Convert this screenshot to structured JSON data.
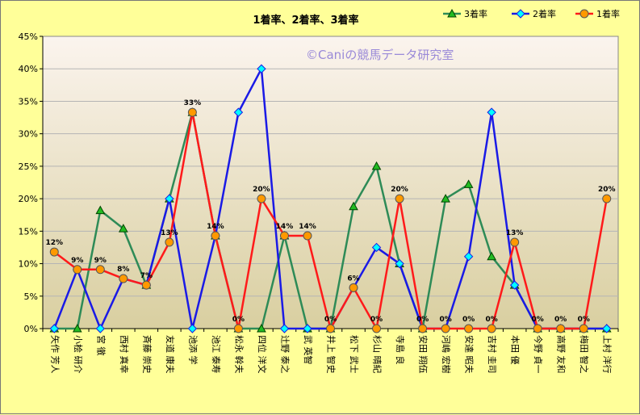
{
  "chart_data": {
    "type": "line",
    "title": "1着率、2着率、3着率",
    "watermark": "©Caniの競馬データ研究室",
    "ylim": [
      0,
      45
    ],
    "yticks": [
      "0%",
      "5%",
      "10%",
      "15%",
      "20%",
      "25%",
      "30%",
      "35%",
      "40%",
      "45%"
    ],
    "legend_position": "top-right",
    "categories": [
      "矢作 芳人",
      "小桧 研介",
      "宮 徹",
      "西村 真幸",
      "斉藤 崇史",
      "友道 康夫",
      "池添 学",
      "池江 泰寿",
      "松永 幹夫",
      "四位 洋文",
      "辻野 泰之",
      "武 英智",
      "井上 智史",
      "松下 武士",
      "杉山 晴紀",
      "寺島 良",
      "安田 翔伍",
      "河嶋 宏樹",
      "安達 昭夫",
      "吉村 圭司",
      "本田 優",
      "今野 貞一",
      "高野 友和",
      "梅田 智之",
      "上村 洋行"
    ],
    "series": [
      {
        "name": "3着率",
        "color": "#2e8b57",
        "marker": "triangle",
        "marker_fill": "#22bb22",
        "values": [
          0,
          0,
          18.2,
          15.4,
          6.7,
          20,
          33.3,
          14.3,
          0,
          0,
          14.3,
          0,
          0,
          18.8,
          25,
          10,
          0,
          20,
          22.2,
          11.1,
          6.7,
          0,
          0,
          0,
          0
        ]
      },
      {
        "name": "2着率",
        "color": "#1a1ae6",
        "marker": "diamond",
        "marker_fill": "#00ffff",
        "values": [
          0,
          9.1,
          0,
          7.7,
          6.7,
          20,
          0,
          14.3,
          33.3,
          40,
          0,
          0,
          0,
          6.3,
          12.5,
          10,
          0,
          0,
          11.1,
          33.3,
          6.7,
          0,
          0,
          0,
          0
        ]
      },
      {
        "name": "1着率",
        "color": "#ff1a1a",
        "marker": "circle",
        "marker_fill": "#ff9900",
        "values": [
          11.8,
          9.1,
          9.1,
          7.7,
          6.7,
          13.3,
          33.3,
          14.3,
          0,
          20,
          14.3,
          14.3,
          0,
          6.3,
          0,
          20,
          0,
          0,
          0,
          0,
          13.3,
          0,
          0,
          0,
          20
        ],
        "labels": [
          "12%",
          "9%",
          "9%",
          "8%",
          "7%",
          "13%",
          "33%",
          "14%",
          "0%",
          "20%",
          "14%",
          "14%",
          "0%",
          "6%",
          "0%",
          "20%",
          "0%",
          "0%",
          "0%",
          "0%",
          "13%",
          "0%",
          "0%",
          "0%",
          "20%"
        ]
      }
    ]
  }
}
